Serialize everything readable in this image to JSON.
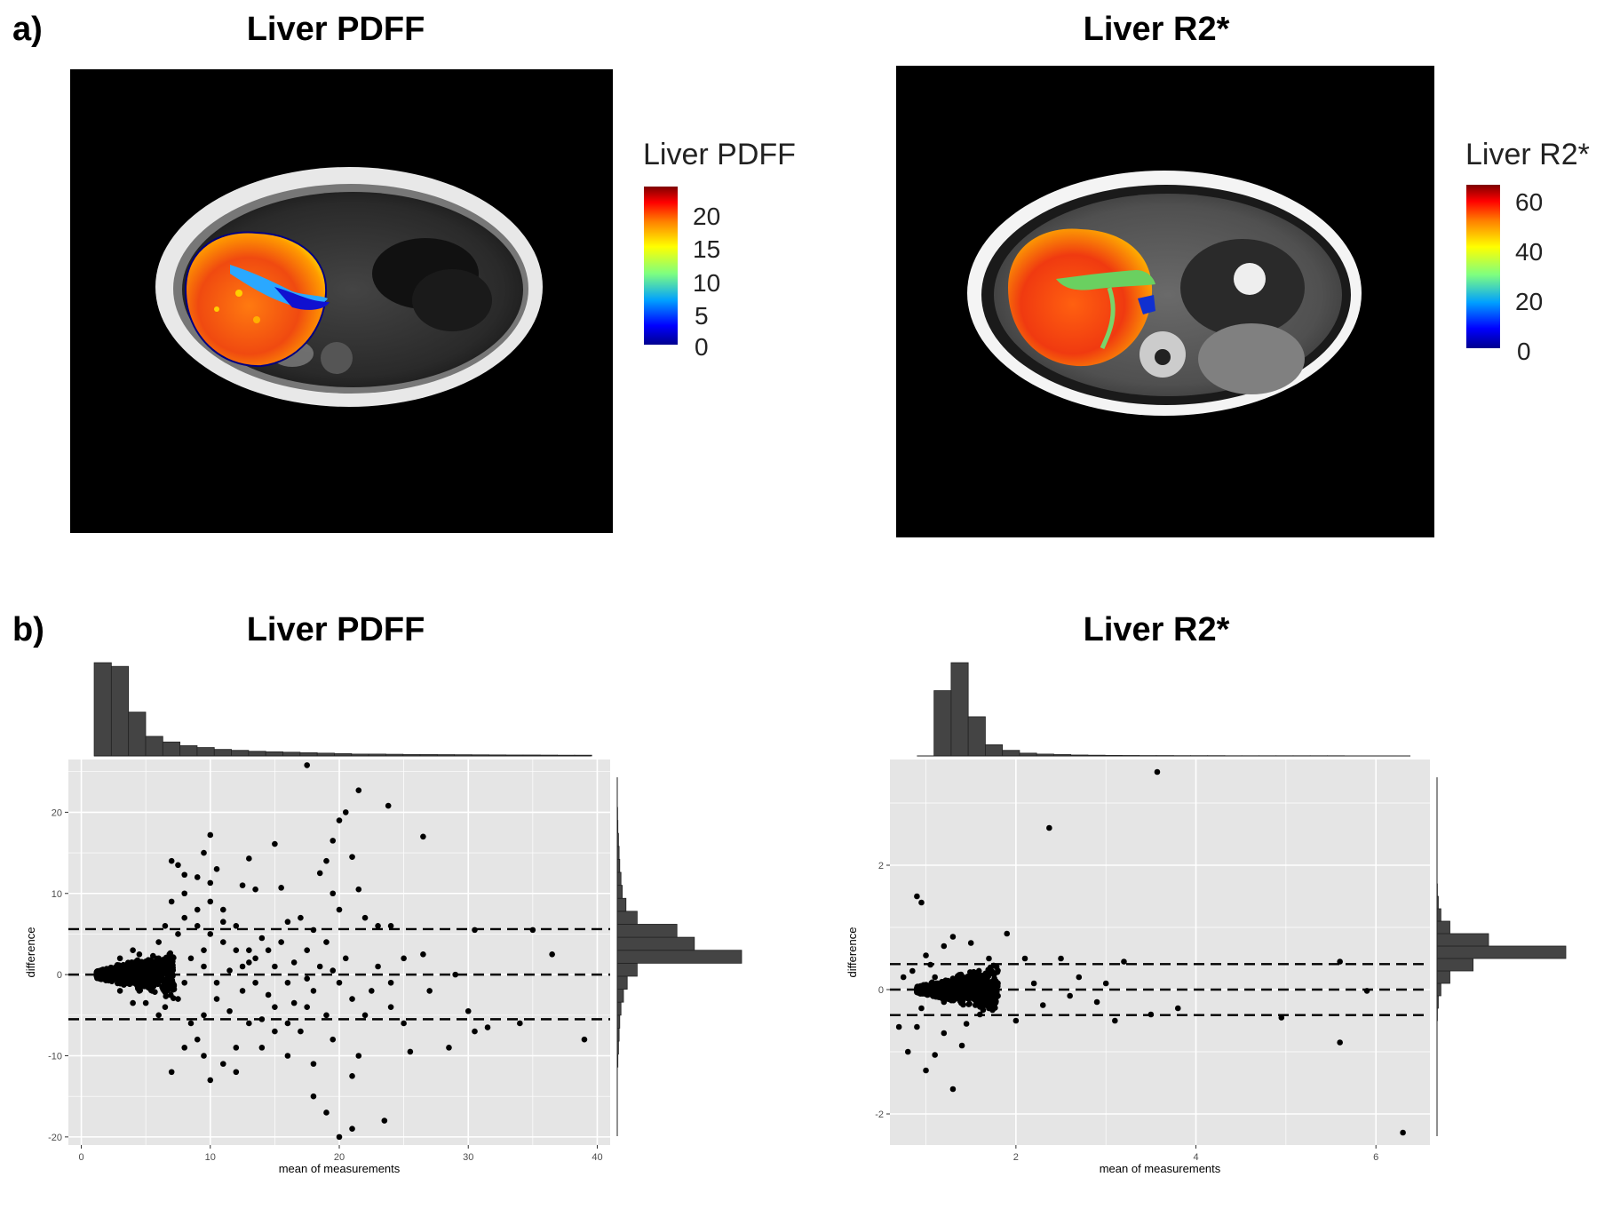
{
  "panel_a": {
    "label": "a)",
    "left": {
      "title": "Liver PDFF",
      "colorbar_title": "Liver PDFF",
      "colorbar_ticks": [
        "20",
        "15",
        "10",
        "5",
        "0"
      ],
      "colorbar_range": [
        0,
        23
      ]
    },
    "right": {
      "title": "Liver R2*",
      "colorbar_title": "Liver R2*",
      "colorbar_ticks": [
        "60",
        "40",
        "20",
        "0"
      ],
      "colorbar_range": [
        0,
        66
      ]
    },
    "colors": {
      "jet_low": "#00008f",
      "jet_mid": "#7fff7f",
      "jet_high": "#7f0000"
    }
  },
  "panel_b": {
    "label": "b)",
    "colors": {
      "panel_bg": "#e5e5e5",
      "grid": "#ffffff",
      "bar": "#444444",
      "point": "#000000"
    }
  },
  "chart_data": [
    {
      "type": "scatter",
      "title": "Liver PDFF",
      "xlabel": "mean of measurements",
      "ylabel": "difference",
      "xlim": [
        -1,
        41
      ],
      "ylim": [
        -21,
        26.5
      ],
      "xticks": [
        "0",
        "10",
        "20",
        "30",
        "40"
      ],
      "yticks": [
        "-20",
        "-10",
        "0",
        "10",
        "20"
      ],
      "reference_lines": [
        5.6,
        0,
        -5.5
      ],
      "points": [
        [
          17.5,
          25.8
        ],
        [
          21.5,
          22.7
        ],
        [
          23.8,
          20.8
        ],
        [
          20.5,
          20
        ],
        [
          20,
          19
        ],
        [
          26.5,
          17
        ],
        [
          10,
          17.2
        ],
        [
          9.5,
          15
        ],
        [
          15,
          16.1
        ],
        [
          13,
          14.3
        ],
        [
          19.5,
          16.5
        ],
        [
          19,
          14
        ],
        [
          21,
          14.5
        ],
        [
          7,
          14
        ],
        [
          7.5,
          13.5
        ],
        [
          10.5,
          13
        ],
        [
          8,
          12.3
        ],
        [
          9,
          12
        ],
        [
          10,
          11.3
        ],
        [
          12.5,
          11
        ],
        [
          13.5,
          10.5
        ],
        [
          15.5,
          10.7
        ],
        [
          18.5,
          12.5
        ],
        [
          21.5,
          10.5
        ],
        [
          19.5,
          10
        ],
        [
          20,
          8
        ],
        [
          22,
          7
        ],
        [
          23,
          6
        ],
        [
          24,
          6
        ],
        [
          26.5,
          2.5
        ],
        [
          30.5,
          5.5
        ],
        [
          35,
          5.5
        ],
        [
          36.5,
          2.5
        ],
        [
          16,
          6.5
        ],
        [
          17,
          7
        ],
        [
          18,
          5.5
        ],
        [
          19,
          4
        ],
        [
          17.5,
          3
        ],
        [
          14,
          4.5
        ],
        [
          12,
          6
        ],
        [
          11,
          8
        ],
        [
          10,
          9
        ],
        [
          11,
          6.5
        ],
        [
          13,
          3
        ],
        [
          15,
          1
        ],
        [
          16,
          -1
        ],
        [
          18,
          -2
        ],
        [
          20,
          -1
        ],
        [
          21,
          -3
        ],
        [
          22,
          -5
        ],
        [
          24,
          -4
        ],
        [
          19,
          -5
        ],
        [
          17,
          -7
        ],
        [
          15,
          -4
        ],
        [
          13,
          -6
        ],
        [
          12,
          -9
        ],
        [
          11,
          -11
        ],
        [
          10,
          -13
        ],
        [
          12,
          -12
        ],
        [
          14,
          -9
        ],
        [
          16,
          -6
        ],
        [
          19.5,
          -8
        ],
        [
          18,
          -15
        ],
        [
          19,
          -17
        ],
        [
          20,
          -20
        ],
        [
          21,
          -19
        ],
        [
          23.5,
          -18
        ],
        [
          21.5,
          -10
        ],
        [
          25.5,
          -9.5
        ],
        [
          28.5,
          -9
        ],
        [
          30.5,
          -7
        ],
        [
          31.5,
          -6.5
        ],
        [
          30,
          -4.5
        ],
        [
          34,
          -6
        ],
        [
          39,
          -8
        ],
        [
          27,
          -2
        ],
        [
          29,
          0
        ],
        [
          24,
          -1
        ],
        [
          23,
          1
        ],
        [
          25,
          2
        ],
        [
          7,
          -12
        ],
        [
          8,
          -9
        ],
        [
          9,
          -8
        ],
        [
          9.5,
          -10
        ],
        [
          8.5,
          -6
        ],
        [
          9.5,
          -5
        ],
        [
          10.5,
          -3
        ],
        [
          11.5,
          -4.5
        ],
        [
          12.5,
          -2
        ],
        [
          13.5,
          -1
        ],
        [
          14.5,
          -2.5
        ],
        [
          13,
          1.5
        ],
        [
          12,
          3
        ],
        [
          11,
          4
        ],
        [
          10,
          5
        ],
        [
          9,
          6
        ],
        [
          8,
          7
        ],
        [
          7.5,
          5
        ],
        [
          6.5,
          6
        ],
        [
          6,
          4
        ],
        [
          6.5,
          -4
        ],
        [
          7.5,
          -3
        ],
        [
          6,
          -5
        ],
        [
          5,
          -3.5
        ],
        [
          8.5,
          2
        ],
        [
          9.5,
          1
        ],
        [
          10.5,
          -1
        ],
        [
          11.5,
          0.5
        ],
        [
          12.5,
          1
        ],
        [
          13.5,
          2
        ],
        [
          14.5,
          3
        ],
        [
          15.5,
          4
        ],
        [
          16.5,
          1.5
        ],
        [
          17.5,
          -0.5
        ],
        [
          18.5,
          1
        ],
        [
          19.5,
          0.5
        ],
        [
          20.5,
          2
        ],
        [
          14,
          -5.5
        ],
        [
          15,
          -7
        ],
        [
          16.5,
          -3.5
        ],
        [
          17.5,
          -4
        ],
        [
          22.5,
          -2
        ],
        [
          25,
          -6
        ],
        [
          16,
          -10
        ],
        [
          18,
          -11
        ],
        [
          21,
          -12.5
        ],
        [
          7,
          9
        ],
        [
          8,
          10
        ],
        [
          9,
          8
        ],
        [
          9.5,
          3
        ],
        [
          8,
          -1
        ],
        [
          7,
          1
        ],
        [
          6,
          2
        ],
        [
          5.5,
          -2
        ],
        [
          5,
          1
        ],
        [
          4.5,
          2.5
        ],
        [
          4.5,
          -2
        ],
        [
          4,
          3
        ],
        [
          4,
          -3.5
        ],
        [
          3.5,
          -1
        ],
        [
          3,
          2
        ],
        [
          3,
          -2
        ]
      ],
      "top_histogram": {
        "x_start": 1,
        "bin_width": 1.33,
        "counts": [
          100,
          96,
          47,
          21,
          15,
          11,
          9,
          7,
          6,
          5,
          4.5,
          4,
          3.5,
          3,
          2.5,
          2,
          2,
          1.8,
          1.6,
          1.5,
          1.4,
          1.3,
          1.2,
          1.1,
          1,
          1,
          0.9,
          0.8,
          0.8,
          0.7,
          0.6,
          0.6,
          0.5,
          0.5,
          0.5,
          0.4
        ]
      },
      "right_histogram": {
        "y_start": -21,
        "bin_width": 1.6,
        "counts": [
          0,
          0,
          0,
          0,
          0,
          0,
          0.5,
          1,
          1.5,
          2,
          3,
          5,
          8,
          16,
          100,
          62,
          48,
          16,
          7,
          4,
          3,
          2,
          1.5,
          1,
          0.5,
          0.3,
          0,
          0,
          0,
          0
        ]
      }
    },
    {
      "type": "scatter",
      "title": "Liver R2*",
      "xlabel": "mean of measurements",
      "ylabel": "difference",
      "xlim": [
        0.6,
        6.6
      ],
      "ylim": [
        -2.5,
        3.7
      ],
      "xticks": [
        "2",
        "4",
        "6"
      ],
      "yticks": [
        "-2",
        "0",
        "2"
      ],
      "reference_lines": [
        0.41,
        0,
        -0.41
      ],
      "points": [
        [
          3.57,
          3.5
        ],
        [
          2.37,
          2.6
        ],
        [
          0.9,
          1.5
        ],
        [
          0.95,
          1.4
        ],
        [
          6.3,
          -2.3
        ],
        [
          1.3,
          -1.6
        ],
        [
          1,
          -1.3
        ],
        [
          0.7,
          -0.6
        ],
        [
          0.8,
          -1
        ],
        [
          1.1,
          -1.05
        ],
        [
          1.4,
          -0.9
        ],
        [
          1.6,
          -0.4
        ],
        [
          1.9,
          0.9
        ],
        [
          2.1,
          0.5
        ],
        [
          2.5,
          0.5
        ],
        [
          2.9,
          -0.2
        ],
        [
          3,
          0.1
        ],
        [
          3.2,
          0.45
        ],
        [
          3.5,
          -0.4
        ],
        [
          3.8,
          -0.3
        ],
        [
          4.95,
          -0.45
        ],
        [
          5.6,
          0.45
        ],
        [
          5.9,
          -0.02
        ],
        [
          5.6,
          -0.85
        ],
        [
          3.1,
          -0.5
        ],
        [
          2.6,
          -0.1
        ],
        [
          2.3,
          -0.25
        ],
        [
          2,
          -0.5
        ],
        [
          1.7,
          0.5
        ],
        [
          1.5,
          0.75
        ],
        [
          1.3,
          0.85
        ],
        [
          1.2,
          0.7
        ],
        [
          1,
          0.55
        ],
        [
          0.85,
          0.3
        ],
        [
          0.75,
          0.2
        ],
        [
          0.9,
          -0.6
        ],
        [
          1.2,
          -0.7
        ],
        [
          1.45,
          -0.55
        ],
        [
          1.7,
          -0.3
        ],
        [
          2.2,
          0.1
        ],
        [
          2.7,
          0.2
        ],
        [
          1.8,
          -0.1
        ],
        [
          1.1,
          0.2
        ],
        [
          1.2,
          -0.2
        ],
        [
          1.3,
          0.1
        ],
        [
          1.4,
          -0.1
        ],
        [
          1.6,
          0.2
        ],
        [
          0.95,
          -0.3
        ],
        [
          1.55,
          -0.25
        ],
        [
          1.05,
          0.4
        ]
      ],
      "top_histogram": {
        "x_start": 0.9,
        "bin_width": 0.19,
        "counts": [
          0,
          70,
          100,
          42,
          12,
          6,
          3,
          2,
          1.5,
          1,
          0.8,
          0.6,
          0.5,
          0.4,
          0.4,
          0.3,
          0.3,
          0.3,
          0.2,
          0.2,
          0.2,
          0.2,
          0.2,
          0.2,
          0.2,
          0.1,
          0.1,
          0.1,
          0.1,
          0.1
        ]
      },
      "right_histogram": {
        "y_start": -2.5,
        "bin_width": 0.2,
        "counts": [
          0,
          0,
          0,
          0,
          0,
          0,
          0,
          0,
          0,
          0,
          0.3,
          1,
          3,
          10,
          28,
          100,
          40,
          10,
          3,
          1,
          0.3,
          0,
          0,
          0,
          0,
          0,
          0,
          0,
          0,
          0,
          0
        ]
      }
    }
  ]
}
